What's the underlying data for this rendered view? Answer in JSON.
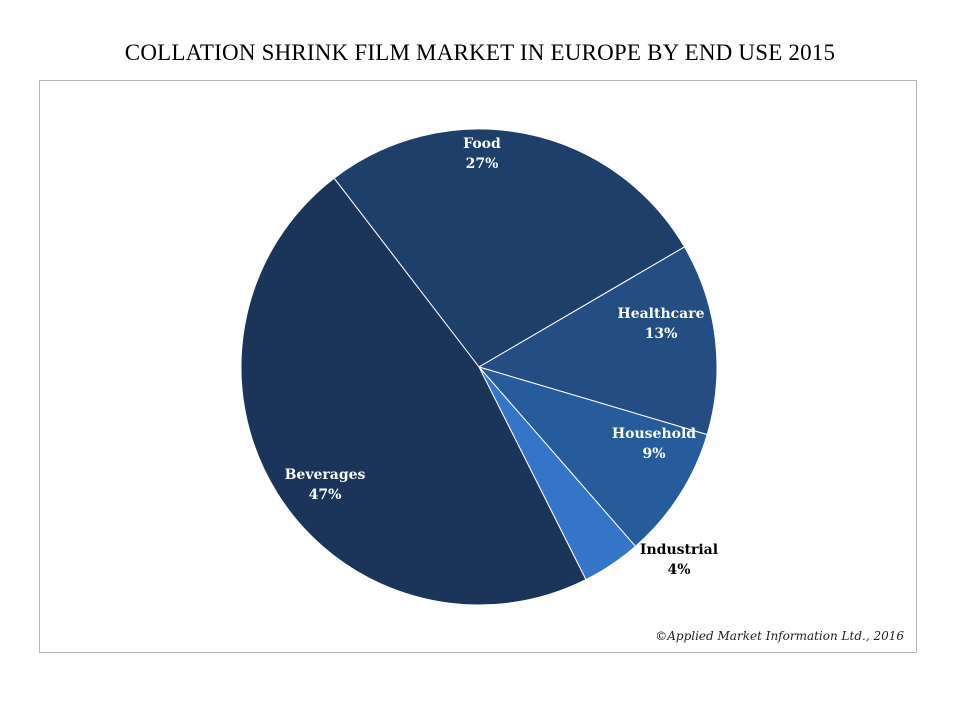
{
  "chart_data": {
    "type": "pie",
    "title": "COLLATION SHRINK FILM MARKET IN EUROPE BY END USE 2015",
    "slices": [
      {
        "label": "Food",
        "value": 27,
        "value_label": "27%",
        "color": "#1f3f6b",
        "label_color": "#ffffff"
      },
      {
        "label": "Healthcare",
        "value": 13,
        "value_label": "13%",
        "color": "#234d83",
        "label_color": "#ffffff"
      },
      {
        "label": "Household",
        "value": 9,
        "value_label": "9%",
        "color": "#275c9c",
        "label_color": "#ffffff"
      },
      {
        "label": "Industrial",
        "value": 4,
        "value_label": "4%",
        "color": "#3575c8",
        "label_color": "#000000"
      },
      {
        "label": "Beverages",
        "value": 47,
        "value_label": "47%",
        "color": "#1b3459",
        "label_color": "#ffffff"
      }
    ],
    "legend": "none",
    "slice_border_color": "#ffffff"
  },
  "credit": "©Applied Market Information Ltd., 2016"
}
